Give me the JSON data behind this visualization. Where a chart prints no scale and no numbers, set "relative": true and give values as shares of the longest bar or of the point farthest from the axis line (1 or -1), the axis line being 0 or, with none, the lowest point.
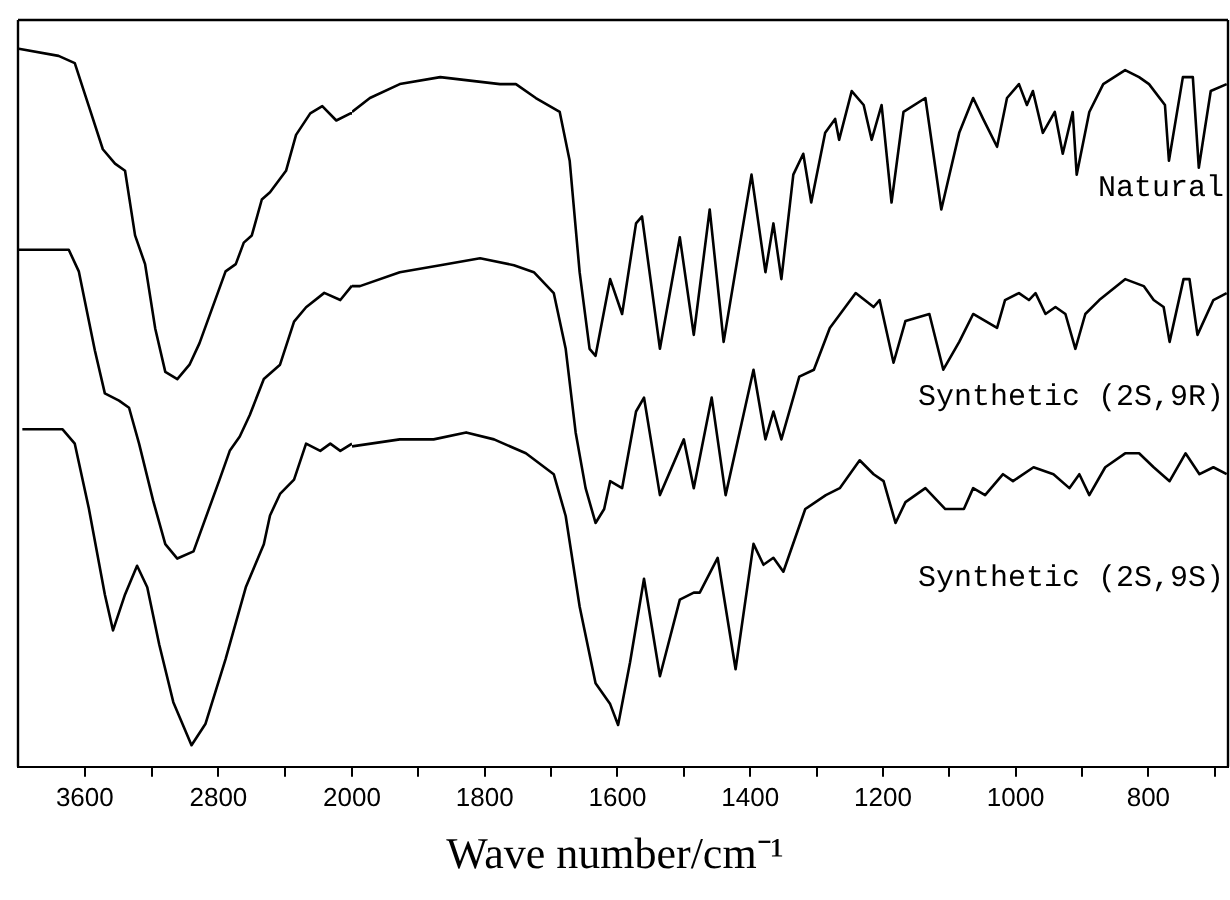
{
  "chart_data": [
    {
      "type": "line",
      "relative": true,
      "xlim": [
        4000,
        2000
      ],
      "xticks": [
        3600,
        {
          "value": 3200,
          "label": null
        },
        2800,
        {
          "value": 2400,
          "label": null
        }
      ],
      "legend": false,
      "marker": "none",
      "line_style": "solid",
      "series": [
        {
          "color": "#000000",
          "x": [
            3995,
            3757,
            3660,
            3576,
            3492,
            3419,
            3359,
            3299,
            3239,
            3178,
            3118,
            3046,
            2973,
            2913,
            2757,
            2696,
            2648,
            2600,
            2540,
            2491,
            2395,
            2335,
            2250,
            2178,
            2094,
            2009,
            2000
          ],
          "values": [
            1.0,
            0.99,
            0.98,
            0.92,
            0.86,
            0.84,
            0.83,
            0.74,
            0.7,
            0.61,
            0.55,
            0.54,
            0.56,
            0.59,
            0.69,
            0.7,
            0.73,
            0.74,
            0.79,
            0.8,
            0.83,
            0.88,
            0.91,
            0.92,
            0.9,
            0.91,
            0.91
          ]
        },
        {
          "color": "#000000",
          "x": [
            3995,
            3696,
            3636,
            3540,
            3480,
            3395,
            3335,
            3275,
            3190,
            3118,
            3046,
            2949,
            2793,
            2732,
            2672,
            2612,
            2528,
            2431,
            2347,
            2275,
            2166,
            2070,
            2000
          ],
          "values": [
            0.72,
            0.72,
            0.69,
            0.58,
            0.52,
            0.51,
            0.5,
            0.45,
            0.37,
            0.31,
            0.29,
            0.3,
            0.4,
            0.44,
            0.46,
            0.49,
            0.54,
            0.56,
            0.62,
            0.64,
            0.66,
            0.65,
            0.67
          ]
        },
        {
          "color": "#000000",
          "x": [
            3974,
            3733,
            3660,
            3576,
            3480,
            3431,
            3359,
            3287,
            3226,
            3154,
            3070,
            2961,
            2877,
            2757,
            2636,
            2528,
            2491,
            2431,
            2347,
            2275,
            2190,
            2130,
            2070,
            2000
          ],
          "values": [
            0.47,
            0.47,
            0.45,
            0.36,
            0.24,
            0.19,
            0.24,
            0.28,
            0.25,
            0.17,
            0.09,
            0.03,
            0.06,
            0.15,
            0.25,
            0.31,
            0.35,
            0.38,
            0.4,
            0.45,
            0.44,
            0.45,
            0.44,
            0.45
          ]
        }
      ]
    },
    {
      "type": "line",
      "relative": true,
      "xlabel": "Wave number/cm⁻¹",
      "xlim": [
        2000,
        680
      ],
      "xticks": [
        2000,
        {
          "value": 1900,
          "label": null
        },
        1800,
        {
          "value": 1700,
          "label": null
        },
        1600,
        {
          "value": 1500,
          "label": null
        },
        1400,
        {
          "value": 1300,
          "label": null
        },
        1200,
        {
          "value": 1100,
          "label": null
        },
        1000,
        {
          "value": 900,
          "label": null
        },
        800,
        {
          "value": 700,
          "label": null
        }
      ],
      "legend": false,
      "marker": "none",
      "line_style": "solid",
      "series": [
        {
          "name": "Natural",
          "color": "#000000",
          "x": [
            2000,
            1973,
            1928,
            1867,
            1777,
            1753,
            1723,
            1687,
            1672,
            1657,
            1642,
            1633,
            1611,
            1593,
            1572,
            1563,
            1536,
            1506,
            1485,
            1461,
            1440,
            1398,
            1377,
            1365,
            1353,
            1335,
            1320,
            1308,
            1287,
            1272,
            1266,
            1247,
            1229,
            1217,
            1202,
            1187,
            1169,
            1136,
            1112,
            1085,
            1064,
            1049,
            1028,
            1013,
            995,
            983,
            974,
            959,
            941,
            929,
            914,
            908,
            889,
            868,
            835,
            814,
            799,
            775,
            769,
            748,
            733,
            724,
            706,
            682
          ],
          "values": [
            0.94,
            0.96,
            0.98,
            0.99,
            0.98,
            0.98,
            0.96,
            0.94,
            0.87,
            0.71,
            0.6,
            0.59,
            0.7,
            0.65,
            0.78,
            0.79,
            0.6,
            0.76,
            0.62,
            0.8,
            0.61,
            0.85,
            0.71,
            0.78,
            0.7,
            0.85,
            0.88,
            0.81,
            0.91,
            0.93,
            0.9,
            0.97,
            0.95,
            0.9,
            0.95,
            0.81,
            0.94,
            0.96,
            0.8,
            0.91,
            0.96,
            0.93,
            0.89,
            0.96,
            0.98,
            0.95,
            0.97,
            0.91,
            0.94,
            0.88,
            0.94,
            0.85,
            0.94,
            0.98,
            1.0,
            0.99,
            0.98,
            0.95,
            0.87,
            0.99,
            0.99,
            0.86,
            0.97,
            0.98
          ]
        },
        {
          "name": "Synthetic (2S,9R)",
          "color": "#000000",
          "x": [
            2000,
            1988,
            1928,
            1867,
            1807,
            1756,
            1726,
            1696,
            1678,
            1663,
            1648,
            1633,
            1620,
            1611,
            1593,
            1572,
            1560,
            1536,
            1500,
            1485,
            1458,
            1437,
            1395,
            1377,
            1365,
            1353,
            1326,
            1304,
            1280,
            1241,
            1214,
            1205,
            1184,
            1166,
            1130,
            1109,
            1085,
            1064,
            1046,
            1028,
            1016,
            995,
            980,
            970,
            955,
            940,
            925,
            910,
            895,
            874,
            835,
            807,
            792,
            777,
            768,
            747,
            738,
            726,
            702,
            682
          ],
          "values": [
            0.69,
            0.69,
            0.71,
            0.72,
            0.73,
            0.72,
            0.71,
            0.68,
            0.6,
            0.48,
            0.4,
            0.35,
            0.37,
            0.41,
            0.4,
            0.51,
            0.53,
            0.39,
            0.47,
            0.4,
            0.53,
            0.39,
            0.57,
            0.47,
            0.51,
            0.47,
            0.56,
            0.57,
            0.63,
            0.68,
            0.66,
            0.67,
            0.58,
            0.64,
            0.65,
            0.57,
            0.61,
            0.65,
            0.64,
            0.63,
            0.67,
            0.68,
            0.67,
            0.68,
            0.65,
            0.66,
            0.65,
            0.6,
            0.65,
            0.67,
            0.7,
            0.69,
            0.67,
            0.66,
            0.61,
            0.7,
            0.7,
            0.62,
            0.67,
            0.68
          ]
        },
        {
          "name": "Synthetic (2S,9S)",
          "color": "#000000",
          "x": [
            2000,
            1997,
            1928,
            1877,
            1828,
            1786,
            1738,
            1696,
            1678,
            1657,
            1633,
            1611,
            1599,
            1581,
            1560,
            1536,
            1506,
            1485,
            1476,
            1449,
            1422,
            1395,
            1380,
            1365,
            1350,
            1317,
            1286,
            1265,
            1235,
            1214,
            1199,
            1181,
            1166,
            1136,
            1106,
            1078,
            1064,
            1046,
            1019,
            1004,
            973,
            943,
            919,
            904,
            889,
            865,
            835,
            814,
            792,
            768,
            744,
            723,
            702,
            682
          ],
          "values": [
            0.46,
            0.46,
            0.47,
            0.47,
            0.48,
            0.47,
            0.45,
            0.42,
            0.36,
            0.23,
            0.12,
            0.09,
            0.06,
            0.15,
            0.27,
            0.13,
            0.24,
            0.25,
            0.25,
            0.3,
            0.14,
            0.32,
            0.29,
            0.3,
            0.28,
            0.37,
            0.39,
            0.4,
            0.44,
            0.42,
            0.41,
            0.35,
            0.38,
            0.4,
            0.37,
            0.37,
            0.4,
            0.39,
            0.42,
            0.41,
            0.43,
            0.42,
            0.4,
            0.42,
            0.39,
            0.43,
            0.45,
            0.45,
            0.43,
            0.41,
            0.45,
            0.42,
            0.43,
            0.42
          ]
        }
      ]
    }
  ]
}
